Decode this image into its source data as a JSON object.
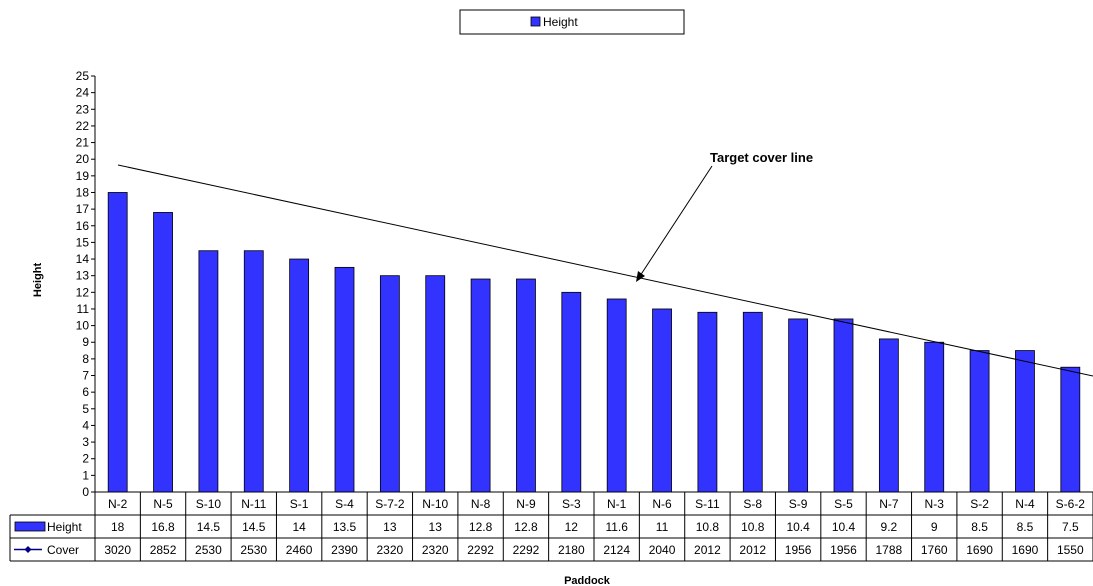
{
  "chart_data": {
    "type": "bar",
    "title": "",
    "xlabel": "Paddock",
    "ylabel": "Height",
    "ylim": [
      0,
      25
    ],
    "y_ticks": [
      0,
      1,
      2,
      3,
      4,
      5,
      6,
      7,
      8,
      9,
      10,
      11,
      12,
      13,
      14,
      15,
      16,
      17,
      18,
      19,
      20,
      21,
      22,
      23,
      24,
      25
    ],
    "categories": [
      "N-2",
      "N-5",
      "S-10",
      "N-11",
      "S-1",
      "S-4",
      "S-7-2",
      "N-10",
      "N-8",
      "N-9",
      "S-3",
      "N-1",
      "N-6",
      "S-11",
      "S-8",
      "S-9",
      "S-5",
      "N-7",
      "N-3",
      "S-2",
      "N-4",
      "S-6-2"
    ],
    "series": [
      {
        "name": "Height",
        "values": [
          18,
          16.8,
          14.5,
          14.5,
          14,
          13.5,
          13,
          13,
          12.8,
          12.8,
          12,
          11.6,
          11,
          10.8,
          10.8,
          10.4,
          10.4,
          9.2,
          9,
          8.5,
          8.5,
          7.5
        ],
        "color": "#3333ff"
      },
      {
        "name": "Cover",
        "values": [
          3020,
          2852,
          2530,
          2530,
          2460,
          2390,
          2320,
          2320,
          2292,
          2292,
          2180,
          2124,
          2040,
          2012,
          2012,
          1956,
          1956,
          1788,
          1760,
          1690,
          1690,
          1550
        ],
        "color": "#000080"
      }
    ],
    "annotation": "Target cover line",
    "legend": {
      "position": "top-center",
      "entries": [
        "Height"
      ]
    },
    "grid": false
  }
}
